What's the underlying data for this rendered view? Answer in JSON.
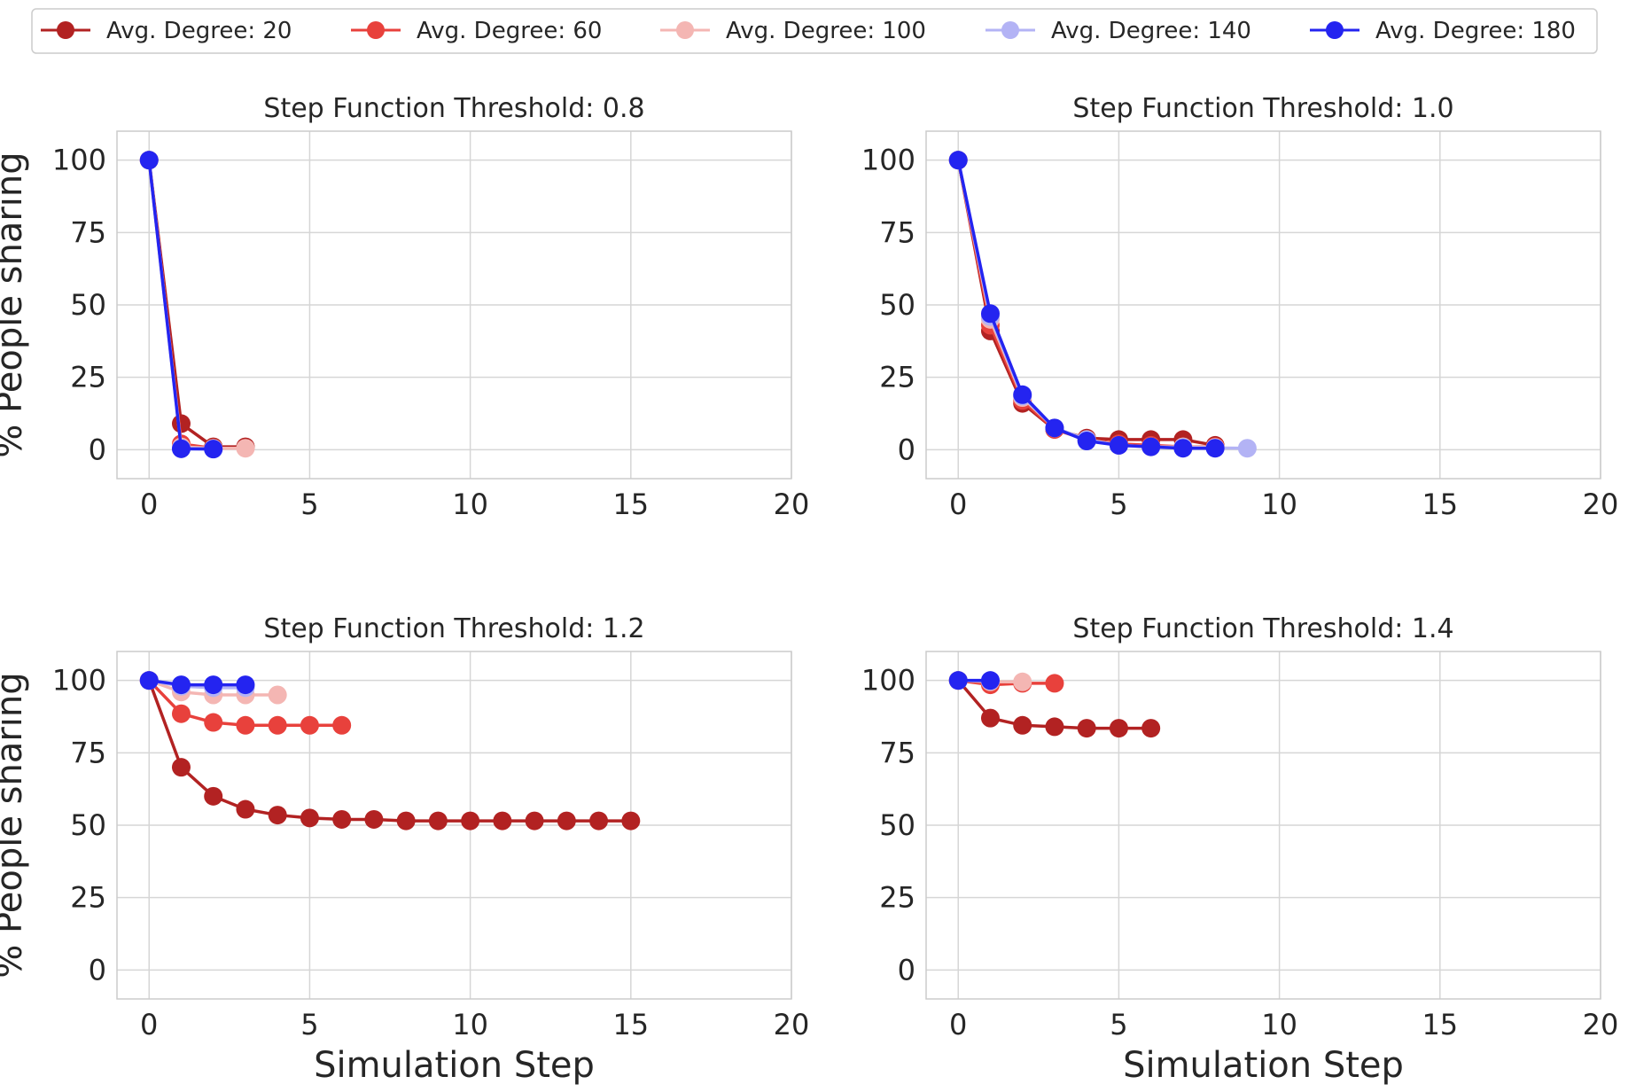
{
  "chart_data": [
    {
      "type": "line",
      "title": "Step Function Threshold: 0.8",
      "xlabel": "",
      "ylabel": "% People sharing",
      "xlim": [
        -1,
        20
      ],
      "ylim": [
        -10,
        110
      ],
      "xticks": [
        0,
        5,
        10,
        15,
        20
      ],
      "yticks": [
        0,
        25,
        50,
        75,
        100
      ],
      "grid": true,
      "series": [
        {
          "name": "Avg. Degree: 20",
          "x": [
            0,
            1,
            2,
            3
          ],
          "values": [
            100,
            9,
            1,
            1
          ]
        },
        {
          "name": "Avg. Degree: 60",
          "x": [
            0,
            1,
            2
          ],
          "values": [
            100,
            2,
            0.5
          ]
        },
        {
          "name": "Avg. Degree: 100",
          "x": [
            0,
            1,
            2,
            3
          ],
          "values": [
            100,
            1,
            0.5,
            0.5
          ]
        },
        {
          "name": "Avg. Degree: 140",
          "x": [
            0,
            1,
            2
          ],
          "values": [
            100,
            0.5,
            0.3
          ]
        },
        {
          "name": "Avg. Degree: 180",
          "x": [
            0,
            1,
            2
          ],
          "values": [
            100,
            0.3,
            0.2
          ]
        }
      ]
    },
    {
      "type": "line",
      "title": "Step Function Threshold: 1.0",
      "xlabel": "",
      "ylabel": "",
      "xlim": [
        -1,
        20
      ],
      "ylim": [
        -10,
        110
      ],
      "xticks": [
        0,
        5,
        10,
        15,
        20
      ],
      "yticks": [
        0,
        25,
        50,
        75,
        100
      ],
      "grid": true,
      "series": [
        {
          "name": "Avg. Degree: 20",
          "x": [
            0,
            1,
            2,
            3,
            4,
            5,
            6,
            7,
            8
          ],
          "values": [
            100,
            41,
            16,
            7,
            4,
            3.5,
            3.5,
            3.5,
            1.5
          ]
        },
        {
          "name": "Avg. Degree: 60",
          "x": [
            0,
            1,
            2,
            3,
            4,
            5,
            6,
            7,
            8
          ],
          "values": [
            100,
            43,
            17,
            7,
            3.5,
            2,
            1.5,
            1,
            1
          ]
        },
        {
          "name": "Avg. Degree: 100",
          "x": [
            0,
            1,
            2,
            3,
            4,
            5,
            6,
            7,
            8
          ],
          "values": [
            100,
            45,
            18,
            7.5,
            3.5,
            1.5,
            1,
            1,
            0.8
          ]
        },
        {
          "name": "Avg. Degree: 140",
          "x": [
            0,
            1,
            2,
            3,
            4,
            5,
            6,
            7,
            8,
            9
          ],
          "values": [
            100,
            46,
            18.5,
            7.5,
            3.5,
            1.5,
            1,
            0.8,
            0.6,
            0.5
          ]
        },
        {
          "name": "Avg. Degree: 180",
          "x": [
            0,
            1,
            2,
            3,
            4,
            5,
            6,
            7,
            8
          ],
          "values": [
            100,
            47,
            19,
            7.5,
            3,
            1.5,
            1,
            0.5,
            0.5
          ]
        }
      ]
    },
    {
      "type": "line",
      "title": "Step Function Threshold: 1.2",
      "xlabel": "Simulation Step",
      "ylabel": "% People sharing",
      "xlim": [
        -1,
        20
      ],
      "ylim": [
        -10,
        110
      ],
      "xticks": [
        0,
        5,
        10,
        15,
        20
      ],
      "yticks": [
        0,
        25,
        50,
        75,
        100
      ],
      "grid": true,
      "series": [
        {
          "name": "Avg. Degree: 20",
          "x": [
            0,
            1,
            2,
            3,
            4,
            5,
            6,
            7,
            8,
            9,
            10,
            11,
            12,
            13,
            14,
            15
          ],
          "values": [
            100,
            70,
            60,
            55.5,
            53.5,
            52.5,
            52,
            52,
            51.5,
            51.5,
            51.5,
            51.5,
            51.5,
            51.5,
            51.5,
            51.5
          ]
        },
        {
          "name": "Avg. Degree: 60",
          "x": [
            0,
            1,
            2,
            3,
            4,
            5,
            6
          ],
          "values": [
            100,
            88.5,
            85.5,
            84.5,
            84.5,
            84.5,
            84.5
          ]
        },
        {
          "name": "Avg. Degree: 100",
          "x": [
            0,
            1,
            2,
            3,
            4
          ],
          "values": [
            100,
            96,
            95,
            95,
            95
          ]
        },
        {
          "name": "Avg. Degree: 140",
          "x": [
            0,
            1,
            2,
            3
          ],
          "values": [
            100,
            98,
            97.5,
            97.5
          ]
        },
        {
          "name": "Avg. Degree: 180",
          "x": [
            0,
            1,
            2,
            3
          ],
          "values": [
            100,
            98.5,
            98.5,
            98.5
          ]
        }
      ]
    },
    {
      "type": "line",
      "title": "Step Function Threshold: 1.4",
      "xlabel": "Simulation Step",
      "ylabel": "",
      "xlim": [
        -1,
        20
      ],
      "ylim": [
        -10,
        110
      ],
      "xticks": [
        0,
        5,
        10,
        15,
        20
      ],
      "yticks": [
        0,
        25,
        50,
        75,
        100
      ],
      "grid": true,
      "series": [
        {
          "name": "Avg. Degree: 20",
          "x": [
            0,
            1,
            2,
            3,
            4,
            5,
            6
          ],
          "values": [
            100,
            87,
            84.5,
            84,
            83.5,
            83.5,
            83.5
          ]
        },
        {
          "name": "Avg. Degree: 60",
          "x": [
            0,
            1,
            2,
            3
          ],
          "values": [
            100,
            98.5,
            99,
            99
          ]
        },
        {
          "name": "Avg. Degree: 100",
          "x": [
            0,
            1,
            2
          ],
          "values": [
            100,
            99.5,
            99.5
          ]
        },
        {
          "name": "Avg. Degree: 140",
          "x": [
            0,
            1
          ],
          "values": [
            100,
            99.8
          ]
        },
        {
          "name": "Avg. Degree: 180",
          "x": [
            0,
            1
          ],
          "values": [
            100,
            100
          ]
        }
      ]
    }
  ],
  "legend": {
    "placement": "top",
    "entries": [
      {
        "label": "Avg. Degree: 20",
        "color": "#b22222"
      },
      {
        "label": "Avg. Degree: 60",
        "color": "#e8413c"
      },
      {
        "label": "Avg. Degree: 100",
        "color": "#f4b6b3"
      },
      {
        "label": "Avg. Degree: 140",
        "color": "#b3b3f5"
      },
      {
        "label": "Avg. Degree: 180",
        "color": "#2424f0"
      }
    ]
  },
  "colors": {
    "grid": "#d6d6d6",
    "spine": "#cccccc",
    "text": "#262626"
  }
}
